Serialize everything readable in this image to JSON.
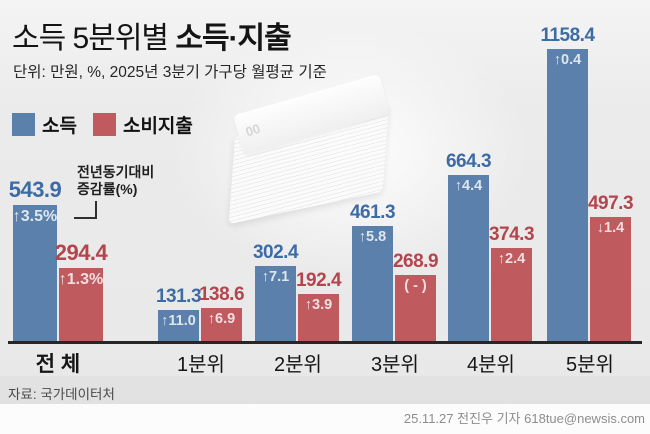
{
  "header": {
    "title_regular": "소득 5분위별 ",
    "title_bold": "소득·지출",
    "subtitle": "단위: 만원, %, 2025년 3분기 가구당 월평균 기준"
  },
  "legend": [
    {
      "label": "소득",
      "color": "#5b80ab"
    },
    {
      "label": "소비지출",
      "color": "#bf5a5f"
    }
  ],
  "annotation": {
    "line1": "전년동기대비",
    "line2": "증감률(%)"
  },
  "colors": {
    "income_bar": "#5b80ab",
    "expenditure_bar": "#bf5a5f",
    "income_value_text": "#3d6ba5",
    "expenditure_value_text": "#b4454d",
    "axis": "#262626"
  },
  "money_image": {
    "visible_digits": "00"
  },
  "chart_data": {
    "type": "bar",
    "unit": "만원",
    "categories": [
      "전 체",
      "1분위",
      "2분위",
      "3분위",
      "4분위",
      "5분위"
    ],
    "series": [
      {
        "key": "income",
        "name": "소득",
        "bar_color": "#5b80ab",
        "value_color": "#3d6ba5",
        "values": [
          543.9,
          131.3,
          302.4,
          461.3,
          664.3,
          1158.4
        ],
        "change_values": [
          "3.5%",
          "11.0",
          "7.1",
          "5.8",
          "4.4",
          "0.4"
        ],
        "change_dirs": [
          "up",
          "up",
          "up",
          "up",
          "up",
          "up"
        ]
      },
      {
        "key": "expenditure",
        "name": "소비지출",
        "bar_color": "#bf5a5f",
        "value_color": "#b4454d",
        "values": [
          294.4,
          138.6,
          192.4,
          268.9,
          374.3,
          497.3
        ],
        "change_values": [
          "1.3%",
          "6.9",
          "3.9",
          "( - )",
          "2.4",
          "1.4"
        ],
        "change_dirs": [
          "up",
          "up",
          "up",
          "none",
          "up",
          "down"
        ]
      }
    ],
    "ylim": [
      0,
      1200
    ],
    "grid": false,
    "legend_position": "top-left",
    "change_note": "전년동기대비 증감률(%)"
  },
  "source": "자료: 국가데이터처",
  "credit": "25.11.27 전진우 기자 618tue@newsis.com"
}
